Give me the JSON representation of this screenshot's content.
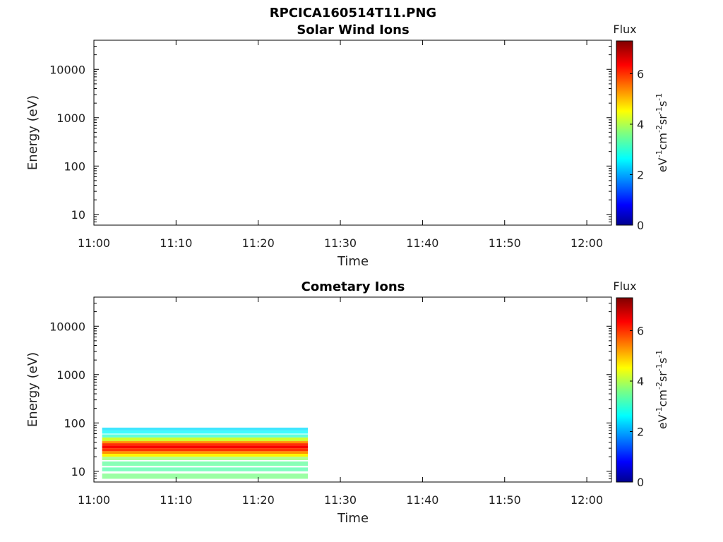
{
  "figure": {
    "title": "RPCICA160514T11.PNG"
  },
  "chart_data": [
    {
      "type": "heatmap",
      "title": "Solar Wind Ions",
      "xlabel": "Time",
      "ylabel": "Energy (eV)",
      "x_ticks": [
        "11:00",
        "11:10",
        "11:20",
        "11:30",
        "11:40",
        "11:50",
        "12:00"
      ],
      "xlim": [
        "11:00",
        "12:03"
      ],
      "y_scale": "log",
      "y_ticks": [
        "10",
        "100",
        "1000",
        "10000"
      ],
      "ylim": [
        6,
        40000
      ],
      "colorbar": {
        "title": "Flux",
        "unit": "eV",
        "range": [
          0,
          7.3
        ],
        "ticks": [
          "0",
          "2",
          "4",
          "6"
        ],
        "colormap": "jet"
      },
      "bands": []
    },
    {
      "type": "heatmap",
      "title": "Cometary Ions",
      "xlabel": "Time",
      "ylabel": "Energy (eV)",
      "x_ticks": [
        "11:00",
        "11:10",
        "11:20",
        "11:30",
        "11:40",
        "11:50",
        "12:00"
      ],
      "xlim": [
        "11:00",
        "12:03"
      ],
      "y_scale": "log",
      "y_ticks": [
        "10",
        "100",
        "1000",
        "10000"
      ],
      "ylim": [
        6,
        40000
      ],
      "colorbar": {
        "title": "Flux",
        "unit": "eV",
        "range": [
          0,
          7.3
        ],
        "ticks": [
          "0",
          "2",
          "4",
          "6"
        ],
        "colormap": "jet"
      },
      "data_time_range": [
        "11:01",
        "11:26"
      ],
      "bands": [
        {
          "energy_low": 70,
          "energy_high": 80,
          "flux": 2.4
        },
        {
          "energy_low": 60,
          "energy_high": 70,
          "flux": 2.6
        },
        {
          "energy_low": 50,
          "energy_high": 58,
          "flux": 3.0
        },
        {
          "energy_low": 42,
          "energy_high": 50,
          "flux": 4.2
        },
        {
          "energy_low": 38,
          "energy_high": 42,
          "flux": 5.3
        },
        {
          "energy_low": 34,
          "energy_high": 38,
          "flux": 6.0
        },
        {
          "energy_low": 30,
          "energy_high": 34,
          "flux": 6.4
        },
        {
          "energy_low": 26,
          "energy_high": 30,
          "flux": 6.0
        },
        {
          "energy_low": 23,
          "energy_high": 26,
          "flux": 5.3
        },
        {
          "energy_low": 20,
          "energy_high": 23,
          "flux": 4.6
        },
        {
          "energy_low": 17,
          "energy_high": 20,
          "flux": 3.8
        },
        {
          "energy_low": 13,
          "energy_high": 16,
          "flux": 3.4
        },
        {
          "energy_low": 10,
          "energy_high": 12,
          "flux": 3.3
        },
        {
          "energy_low": 7,
          "energy_high": 9,
          "flux": 3.6
        }
      ]
    }
  ]
}
